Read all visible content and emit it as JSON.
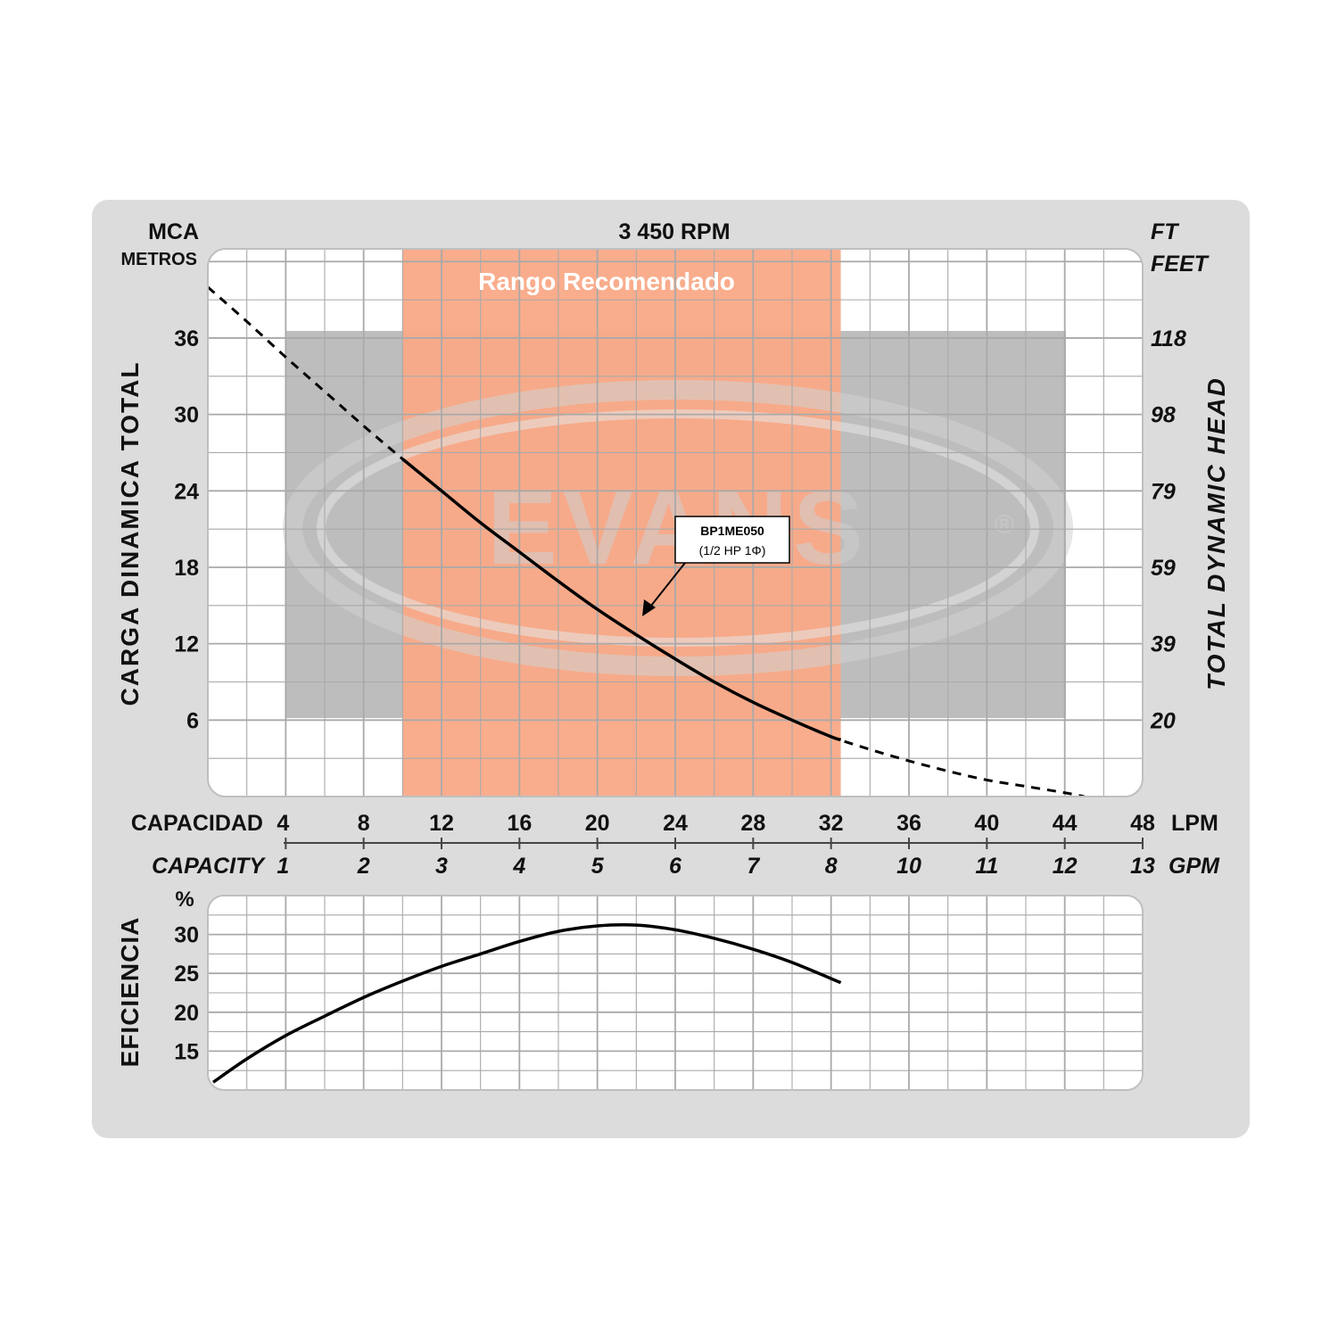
{
  "header": {
    "left_unit": "MCA",
    "left_unit_sub": "METROS",
    "rpm": "3 450 RPM",
    "right_unit": "FT",
    "right_unit_sub": "FEET"
  },
  "watermark": {
    "brand": "EVANS",
    "registered": "®"
  },
  "annotation": {
    "model": "BP1ME050",
    "spec": "(1/2 HP 1Φ)"
  },
  "colors": {
    "recommended": "#f9a987",
    "gray_block": "#bdbdbd",
    "panel": "#dcdcdc",
    "plot_bg": "#ffffff",
    "grid": "#a9a9a9",
    "curve": "#000000"
  },
  "chart_data": [
    {
      "type": "line",
      "title": "3 450 RPM",
      "ylabel_left": "CARGA DINAMICA TOTAL",
      "ylabel_right": "TOTAL DYNAMIC HEAD",
      "xlabel_top": "CAPACIDAD",
      "xlabel_bottom": "CAPACITY",
      "x_unit_top": "LPM",
      "x_unit_bottom": "GPM",
      "x_ticks_lpm": [
        "4",
        "8",
        "12",
        "16",
        "20",
        "24",
        "28",
        "32",
        "36",
        "40",
        "44",
        "48"
      ],
      "x_ticks_gpm": [
        "1",
        "2",
        "3",
        "4",
        "5",
        "6",
        "7",
        "8",
        "10",
        "11",
        "12",
        "13"
      ],
      "y_ticks_left": [
        "36",
        "30",
        "24",
        "18",
        "12",
        "6"
      ],
      "y_ticks_right": [
        "118",
        "98",
        "79",
        "59",
        "39",
        "20"
      ],
      "xlim": [
        0,
        48
      ],
      "ylim": [
        0,
        43
      ],
      "recommended_range": {
        "label": "Rango Recomendado",
        "x": [
          10,
          32.5
        ]
      },
      "series": [
        {
          "name": "BP1ME050",
          "x": [
            0,
            2,
            4,
            6,
            8,
            10,
            12,
            14,
            16,
            18,
            20,
            22,
            24,
            26,
            28,
            30,
            32,
            34,
            36,
            38,
            40,
            42,
            44,
            45
          ],
          "y": [
            40.0,
            37.3,
            34.5,
            31.8,
            29.1,
            26.5,
            24.0,
            21.5,
            19.2,
            16.9,
            14.7,
            12.7,
            10.8,
            9.0,
            7.4,
            6.0,
            4.7,
            3.7,
            2.8,
            2.0,
            1.3,
            0.8,
            0.3,
            0.0
          ],
          "solid_range": [
            10,
            32.5
          ]
        }
      ]
    },
    {
      "type": "line",
      "title": "",
      "ylabel": "EFICIENCIA",
      "y_unit": "%",
      "y_ticks": [
        "30",
        "25",
        "20",
        "15"
      ],
      "xlim": [
        0,
        48
      ],
      "ylim": [
        10,
        35
      ],
      "series": [
        {
          "name": "",
          "x": [
            0,
            2,
            4,
            6,
            8,
            10,
            12,
            14,
            16,
            18,
            20,
            22,
            24,
            26,
            28,
            30,
            32.5
          ],
          "y": [
            11,
            14,
            17,
            19.5,
            21.9,
            24,
            25.9,
            27.5,
            29.1,
            30.4,
            31.1,
            31.2,
            30.6,
            29.5,
            28.1,
            26.4,
            23.8
          ]
        }
      ]
    }
  ]
}
